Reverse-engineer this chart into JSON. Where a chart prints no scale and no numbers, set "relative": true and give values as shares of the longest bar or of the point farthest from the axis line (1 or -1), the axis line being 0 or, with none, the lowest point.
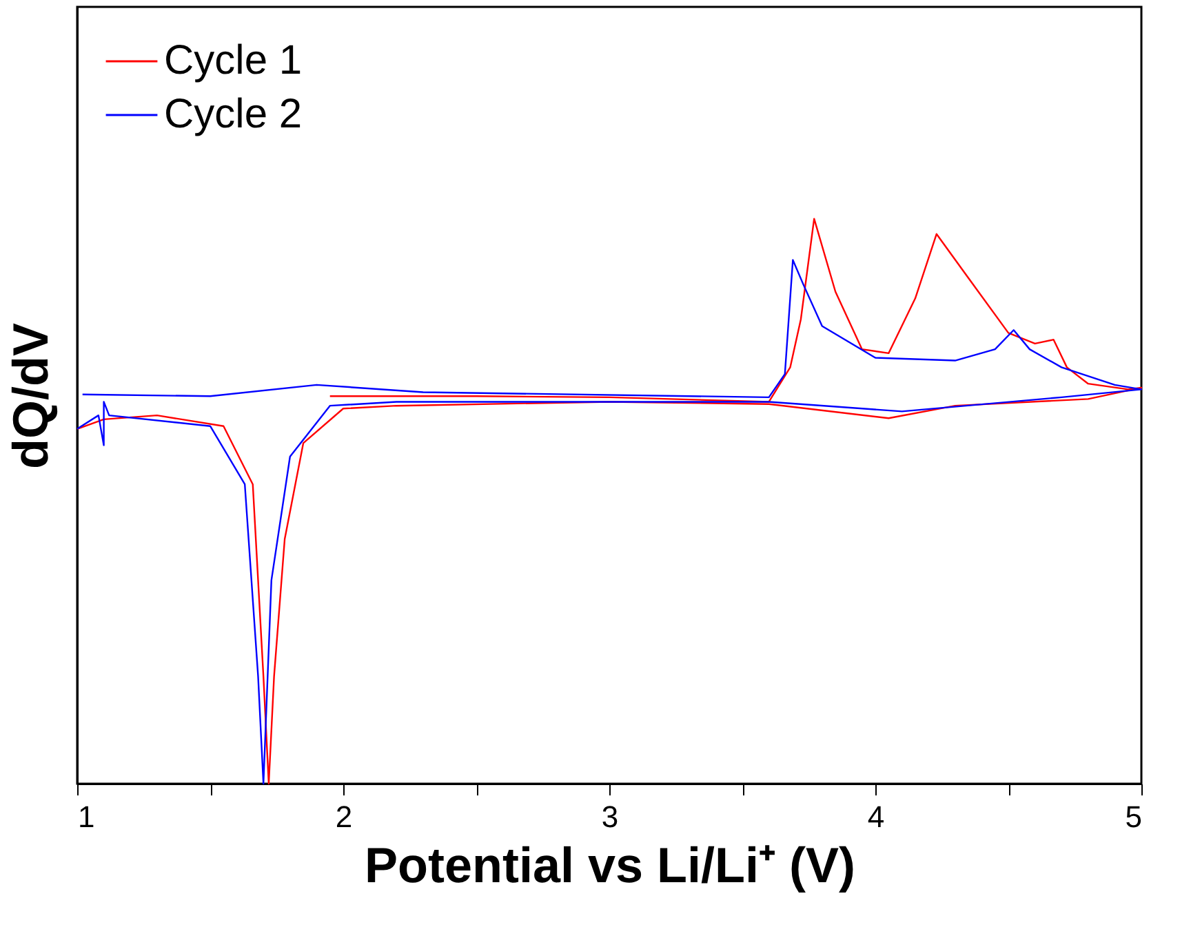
{
  "chart_data": {
    "type": "line",
    "relative": true,
    "xlabel": "Potential vs Li/Li⁺ (V)",
    "ylabel": "dQ/dV",
    "xlim": [
      1,
      5
    ],
    "xticks": [
      1,
      {
        "value": 1.5,
        "label": null
      },
      2,
      {
        "value": 2.5,
        "label": null
      },
      3,
      {
        "value": 3.5,
        "label": null
      },
      4,
      {
        "value": 4.5,
        "label": null
      },
      5
    ],
    "legend": "top left",
    "grid": false,
    "marker": "none",
    "line_style": "solid",
    "series": [
      {
        "name": "Cycle 1",
        "color": "#ff0000",
        "x": [
          1.95,
          2.5,
          3.0,
          3.6,
          3.68,
          3.72,
          3.77,
          3.85,
          3.95,
          4.05,
          4.15,
          4.23,
          4.35,
          4.5,
          4.6,
          4.67,
          4.72,
          4.8,
          4.95,
          5.0,
          4.8,
          4.3,
          4.05,
          3.6,
          3.0,
          2.2,
          2.0,
          1.85,
          1.78,
          1.74,
          1.72,
          1.7,
          1.66,
          1.55,
          1.3,
          1.1,
          1.0
        ],
        "values": [
          0.686,
          0.686,
          0.684,
          0.676,
          0.737,
          0.822,
          1,
          0.871,
          0.769,
          0.762,
          0.859,
          0.973,
          0.895,
          0.798,
          0.779,
          0.786,
          0.737,
          0.708,
          0.698,
          0.701,
          0.681,
          0.669,
          0.647,
          0.672,
          0.676,
          0.669,
          0.664,
          0.603,
          0.433,
          0.19,
          0,
          0.19,
          0.53,
          0.633,
          0.652,
          0.645,
          0.628
        ]
      },
      {
        "name": "Cycle 2",
        "color": "#0000ff",
        "x": [
          1.02,
          1.5,
          1.9,
          2.3,
          3.6,
          3.66,
          3.69,
          3.73,
          3.8,
          4.0,
          4.3,
          4.45,
          4.52,
          4.58,
          4.7,
          4.9,
          5.0,
          4.7,
          4.1,
          3.6,
          2.2,
          1.95,
          1.8,
          1.73,
          1.7,
          1.68,
          1.63,
          1.5,
          1.12,
          1.1,
          1.1,
          1.08,
          1.0
        ],
        "values": [
          0.689,
          0.686,
          0.706,
          0.693,
          0.684,
          0.725,
          0.927,
          0.883,
          0.81,
          0.754,
          0.749,
          0.769,
          0.803,
          0.769,
          0.737,
          0.706,
          0.698,
          0.684,
          0.659,
          0.676,
          0.676,
          0.669,
          0.579,
          0.36,
          0,
          0.19,
          0.53,
          0.633,
          0.652,
          0.676,
          0.599,
          0.652,
          0.628
        ]
      }
    ]
  }
}
